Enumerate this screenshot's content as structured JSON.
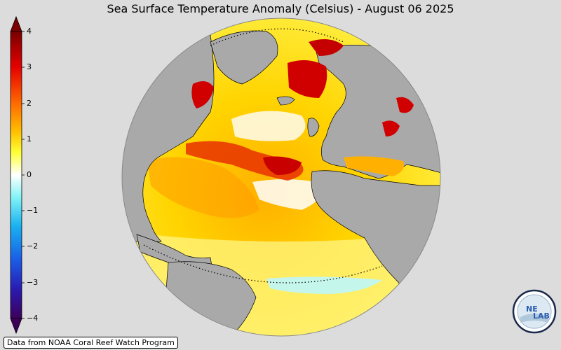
{
  "title": "Sea Surface Temperature Anomaly (Celsius) - August 06 2025",
  "colorbar": {
    "ticks": [
      "4",
      "3",
      "2",
      "1",
      "0",
      "−1",
      "−2",
      "−3",
      "−4"
    ],
    "range": [
      -4,
      4
    ],
    "colors": [
      "#3d0059",
      "#1a1ae6",
      "#18b0f0",
      "#7ff3f7",
      "#ffffff",
      "#ffff33",
      "#ffa500",
      "#e60000",
      "#7a0000"
    ]
  },
  "credit": "Data from NOAA Coral Reef Watch Program",
  "logo": {
    "text_top": "NE",
    "text_bottom": "LAB",
    "icon": "nesdis-lab-logo"
  },
  "map": {
    "projection": "orthographic",
    "region": "North Atlantic Ocean",
    "land_color": "#a9a9a9",
    "ocean_anomaly_colors": {
      "cool": "#8ff0f5",
      "neutral": "#ffffff",
      "warm": "#ffe000",
      "hot": "#ff7a00",
      "extreme": "#d40000"
    }
  }
}
